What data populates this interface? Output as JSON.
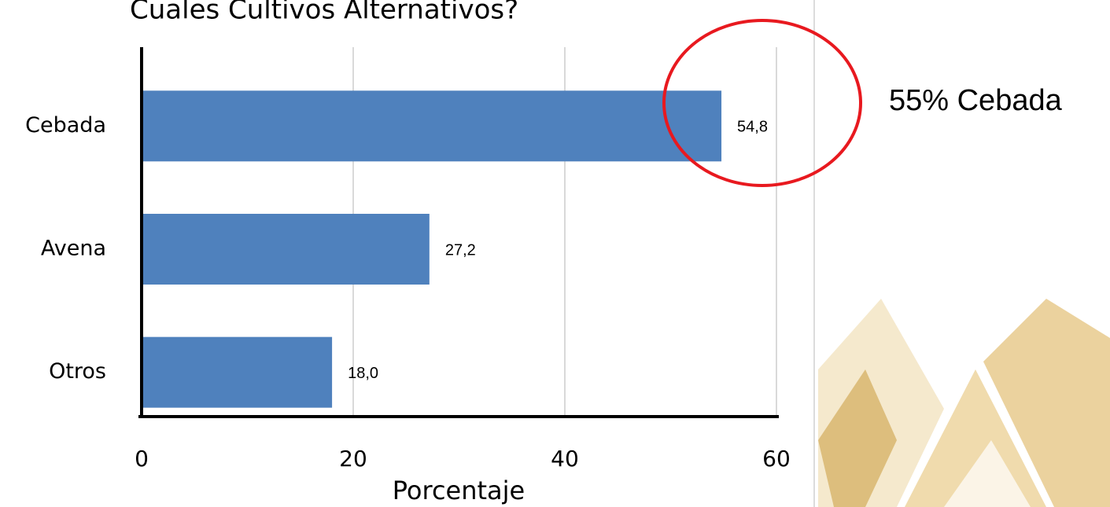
{
  "chart_data": {
    "type": "bar",
    "orientation": "horizontal",
    "title": "Cuales Cultivos Alternativos?",
    "annotation": "55% Cebada",
    "xlabel": "Porcentaje",
    "categories": [
      "Cebada",
      "Avena",
      "Otros"
    ],
    "values": [
      54.8,
      27.2,
      18.0
    ],
    "value_labels": [
      "54,8",
      "27,2",
      "18,0"
    ],
    "color": "#4f81bd",
    "highlight_color": "#e8191f",
    "xlim": [
      0,
      60
    ],
    "xticks": [
      0,
      20,
      40,
      60
    ],
    "grid": true
  }
}
